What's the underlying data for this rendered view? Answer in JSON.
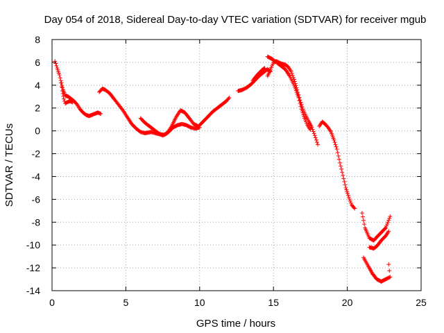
{
  "chart_data": {
    "type": "scatter",
    "title": "Day 054 of 2018, Sidereal Day-to-day VTEC variation (SDTVAR) for receiver mgub",
    "xlabel": "GPS time / hours",
    "ylabel": "SDTVAR / TECUs",
    "xlim": [
      0,
      25
    ],
    "ylim": [
      -14,
      8
    ],
    "xticks": [
      0,
      5,
      10,
      15,
      20,
      25
    ],
    "yticks": [
      -14,
      -12,
      -10,
      -8,
      -6,
      -4,
      -2,
      0,
      2,
      4,
      6,
      8
    ],
    "grid": true,
    "marker": "plus",
    "colors": {
      "series": "#ff0000",
      "grid": "#a0a0a0",
      "axis": "#000000"
    },
    "series": [
      {
        "segments": [
          [
            [
              0.2,
              6.1
            ],
            [
              0.35,
              5.5
            ],
            [
              0.5,
              4.9
            ],
            [
              0.6,
              4.4
            ],
            [
              0.75,
              3.6
            ],
            [
              0.9,
              3.1
            ],
            [
              1.1,
              3.0
            ],
            [
              1.3,
              2.8
            ],
            [
              1.5,
              2.6
            ],
            [
              1.7,
              2.3
            ],
            [
              1.9,
              1.9
            ],
            [
              2.1,
              1.6
            ],
            [
              2.3,
              1.4
            ],
            [
              2.5,
              1.3
            ],
            [
              2.7,
              1.4
            ],
            [
              2.9,
              1.5
            ],
            [
              3.1,
              1.6
            ],
            [
              3.3,
              1.5
            ]
          ],
          [
            [
              0.6,
              4.2
            ],
            [
              0.7,
              3.5
            ],
            [
              0.8,
              2.8
            ],
            [
              0.9,
              2.4
            ],
            [
              1.0,
              2.5
            ],
            [
              1.2,
              2.6
            ],
            [
              1.4,
              2.5
            ]
          ],
          [
            [
              3.2,
              3.4
            ],
            [
              3.4,
              3.7
            ],
            [
              3.6,
              3.6
            ],
            [
              3.9,
              3.3
            ],
            [
              4.2,
              2.8
            ],
            [
              4.5,
              2.3
            ],
            [
              4.8,
              1.8
            ],
            [
              5.1,
              1.2
            ],
            [
              5.4,
              0.6
            ],
            [
              5.7,
              0.2
            ],
            [
              6.0,
              -0.1
            ],
            [
              6.3,
              -0.2
            ],
            [
              6.7,
              -0.1
            ],
            [
              7.0,
              -0.2
            ],
            [
              7.3,
              -0.3
            ],
            [
              7.6,
              -0.35
            ],
            [
              7.9,
              -0.1
            ],
            [
              8.2,
              0.3
            ],
            [
              8.5,
              0.5
            ],
            [
              8.8,
              0.6
            ],
            [
              9.1,
              0.5
            ],
            [
              9.4,
              0.3
            ],
            [
              9.7,
              0.2
            ],
            [
              10.0,
              0.3
            ]
          ],
          [
            [
              6.0,
              1.1
            ],
            [
              6.3,
              0.7
            ],
            [
              6.6,
              0.4
            ],
            [
              6.9,
              0.1
            ],
            [
              7.2,
              -0.2
            ],
            [
              7.5,
              -0.4
            ],
            [
              7.8,
              -0.2
            ],
            [
              8.1,
              0.4
            ],
            [
              8.4,
              1.2
            ],
            [
              8.7,
              1.8
            ],
            [
              9.0,
              1.6
            ],
            [
              9.3,
              1.1
            ],
            [
              9.6,
              0.6
            ],
            [
              9.9,
              0.4
            ]
          ],
          [
            [
              10.0,
              0.5
            ],
            [
              10.3,
              0.9
            ],
            [
              10.6,
              1.3
            ],
            [
              10.9,
              1.7
            ],
            [
              11.2,
              2.0
            ],
            [
              11.5,
              2.3
            ],
            [
              11.8,
              2.6
            ],
            [
              12.0,
              2.9
            ]
          ],
          [
            [
              12.6,
              3.5
            ],
            [
              12.9,
              3.6
            ],
            [
              13.2,
              3.8
            ],
            [
              13.5,
              4.1
            ],
            [
              13.8,
              4.5
            ],
            [
              14.1,
              4.9
            ],
            [
              14.4,
              5.2
            ],
            [
              14.6,
              5.4
            ],
            [
              14.8,
              5.2
            ]
          ],
          [
            [
              13.6,
              4.4
            ],
            [
              13.9,
              4.9
            ],
            [
              14.2,
              5.3
            ],
            [
              14.4,
              5.5
            ]
          ],
          [
            [
              14.6,
              4.8
            ],
            [
              14.8,
              5.4
            ],
            [
              15.0,
              6.0
            ],
            [
              15.2,
              6.1
            ],
            [
              15.5,
              5.9
            ],
            [
              15.8,
              5.8
            ],
            [
              16.0,
              5.6
            ],
            [
              16.2,
              5.2
            ],
            [
              16.4,
              4.5
            ],
            [
              16.6,
              3.6
            ],
            [
              16.8,
              2.7
            ],
            [
              17.0,
              1.9
            ],
            [
              17.2,
              1.3
            ],
            [
              17.4,
              0.8
            ],
            [
              17.6,
              0.3
            ],
            [
              17.8,
              -0.4
            ],
            [
              18.0,
              -1.2
            ]
          ],
          [
            [
              14.6,
              6.5
            ],
            [
              14.9,
              6.3
            ],
            [
              15.2,
              6.0
            ],
            [
              15.5,
              5.7
            ],
            [
              15.8,
              5.4
            ],
            [
              16.1,
              4.8
            ],
            [
              16.4,
              4.0
            ],
            [
              16.7,
              2.9
            ],
            [
              16.9,
              1.9
            ],
            [
              17.1,
              1.1
            ],
            [
              17.3,
              0.5
            ],
            [
              17.5,
              0.1
            ]
          ],
          [
            [
              18.1,
              0.4
            ],
            [
              18.3,
              0.8
            ],
            [
              18.5,
              0.6
            ],
            [
              18.7,
              0.3
            ],
            [
              18.9,
              -0.1
            ],
            [
              19.1,
              -0.8
            ],
            [
              19.3,
              -1.6
            ],
            [
              19.5,
              -2.8
            ],
            [
              19.7,
              -3.9
            ],
            [
              19.9,
              -5.0
            ],
            [
              20.1,
              -5.8
            ],
            [
              20.3,
              -6.5
            ],
            [
              20.5,
              -6.8
            ]
          ],
          [
            [
              21.0,
              -7.2
            ],
            [
              21.2,
              -8.5
            ],
            [
              21.5,
              -9.4
            ],
            [
              21.8,
              -9.6
            ],
            [
              22.0,
              -9.3
            ],
            [
              22.3,
              -8.9
            ],
            [
              22.6,
              -8.5
            ],
            [
              22.9,
              -7.5
            ]
          ],
          [
            [
              21.1,
              -11.1
            ],
            [
              21.4,
              -11.8
            ],
            [
              21.7,
              -12.5
            ],
            [
              22.0,
              -13.0
            ],
            [
              22.3,
              -13.2
            ],
            [
              22.6,
              -13.0
            ],
            [
              22.9,
              -12.8
            ],
            [
              22.8,
              -11.7
            ]
          ],
          [
            [
              21.5,
              -10.2
            ],
            [
              21.8,
              -10.3
            ],
            [
              22.0,
              -10.1
            ],
            [
              22.3,
              -9.6
            ],
            [
              22.6,
              -9.2
            ],
            [
              22.8,
              -8.8
            ]
          ]
        ]
      }
    ]
  }
}
